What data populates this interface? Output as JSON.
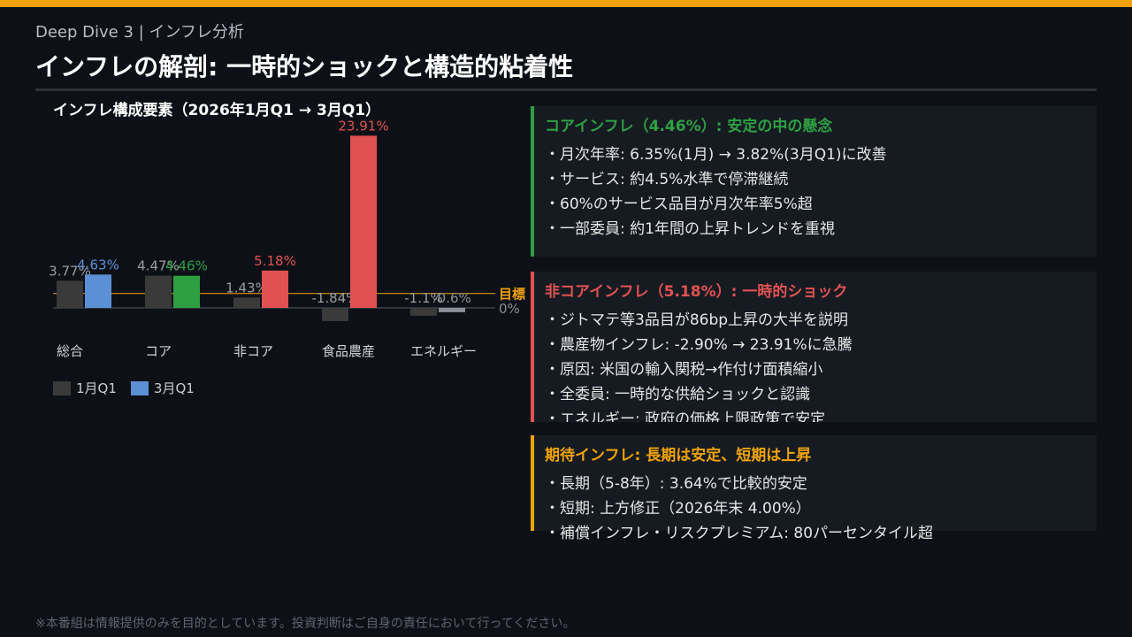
{
  "header": {
    "kicker": "Deep Dive 3 | インフレ分析",
    "title": "インフレの解剖: 一時的ショックと構造的粘着性"
  },
  "chart_data": {
    "type": "bar",
    "title": "インフレ構成要素（2026年1月Q1 → 3月Q1）",
    "categories": [
      "総合",
      "コア",
      "非コア",
      "食品農産",
      "エネルギー"
    ],
    "series": [
      {
        "name": "1月Q1",
        "values": [
          3.77,
          4.47,
          1.43,
          -1.84,
          -1.1
        ],
        "labels": [
          "3.77%",
          "4.47%",
          "1.43%",
          "-1.84%",
          "-1.1%"
        ],
        "color": "#3a3a3a"
      },
      {
        "name": "3月Q1",
        "values": [
          4.63,
          4.46,
          5.18,
          23.91,
          -0.6
        ],
        "labels": [
          "4.63%",
          "4.46%",
          "5.18%",
          "23.91%",
          "-0.6%"
        ],
        "colors": [
          "#5b8fd6",
          "#2ea043",
          "#e05252",
          "#e05252",
          "#8b8f96"
        ]
      }
    ],
    "target_value": 2.0,
    "target_label": "目標",
    "zero_label": "0%",
    "ylim": [
      -2.5,
      26
    ],
    "legend_position": "bottom-left"
  },
  "panels": {
    "core": {
      "title": "コアインフレ（4.46%）: 安定の中の懸念",
      "items": [
        "月次年率: 6.35%(1月) → 3.82%(3月Q1)に改善",
        "サービス: 約4.5%水準で停滞継続",
        "60%のサービス品目が月次年率5%超",
        "一部委員: 約1年間の上昇トレンドを重視"
      ]
    },
    "noncore": {
      "title": "非コアインフレ（5.18%）: 一時的ショック",
      "items": [
        "ジトマテ等3品目が86bp上昇の大半を説明",
        "農産物インフレ: -2.90% → 23.91%に急騰",
        "原因: 米国の輸入関税→作付け面積縮小",
        "全委員: 一時的な供給ショックと認識",
        "エネルギー: 政府の価格上限政策で安定"
      ]
    },
    "expect": {
      "title": "期待インフレ: 長期は安定、短期は上昇",
      "items": [
        "長期（5-8年）: 3.64%で比較的安定",
        "短期: 上方修正（2026年末 4.00%）",
        "補償インフレ・リスクプレミアム: 80パーセンタイル超"
      ]
    }
  },
  "footer": "※本番組は情報提供のみを目的としています。投資判断はご自身の責任において行ってください。",
  "colors": {
    "accent": "#f0a30a",
    "green": "#2ea043",
    "red": "#e05252",
    "blue": "#5b8fd6",
    "dark_bar": "#3a3a3a"
  }
}
